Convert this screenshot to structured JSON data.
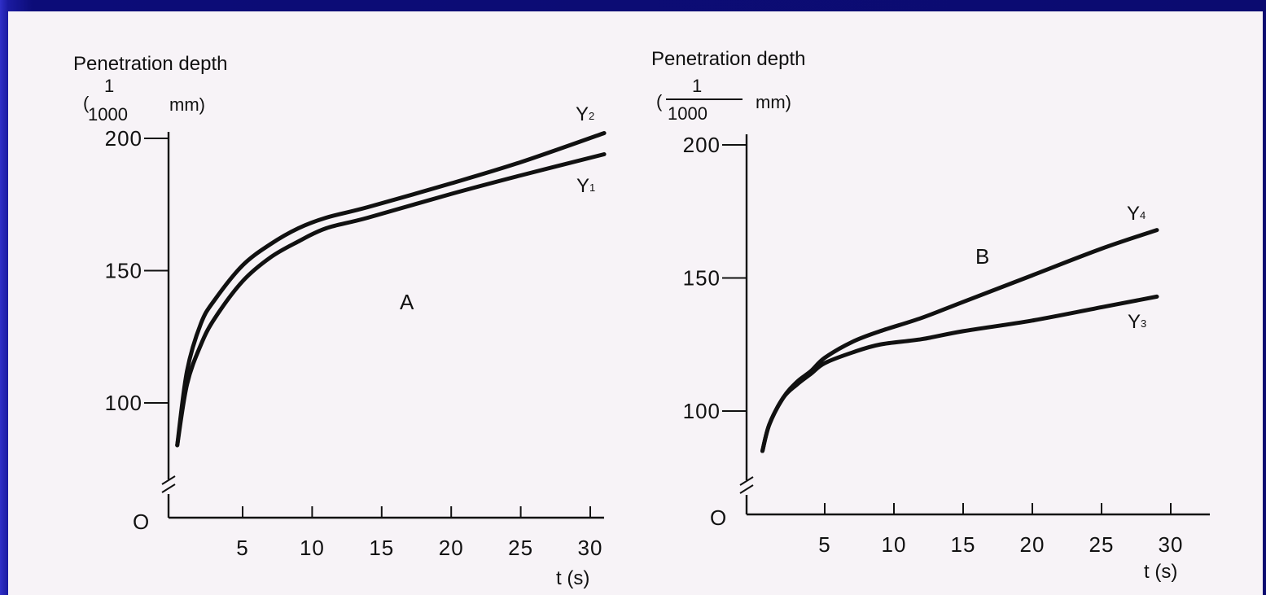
{
  "chart_data": [
    {
      "panel": "left",
      "type": "line",
      "ylabel": "Penetration depth",
      "yunit": {
        "open": "(",
        "num": "1",
        "den": "1000",
        "unit": "mm)"
      },
      "xlabel": "t (s)",
      "origin_label": "O",
      "annotation": "A",
      "xlim": [
        0,
        31
      ],
      "ylim": [
        80,
        200
      ],
      "yaxis_break": true,
      "xticks": [
        5,
        10,
        15,
        20,
        25,
        30
      ],
      "yticks": [
        100,
        150,
        200
      ],
      "series": [
        {
          "name": "Y1",
          "label_main": "Y",
          "label_sub": "1",
          "x": [
            0.3,
            1,
            2,
            3,
            5,
            7,
            9,
            11,
            14,
            20,
            25,
            31
          ],
          "y": [
            84,
            107,
            122,
            132,
            146,
            155,
            161,
            166,
            170,
            179,
            186,
            194
          ]
        },
        {
          "name": "Y2",
          "label_main": "Y",
          "label_sub": "2",
          "x": [
            0.3,
            1,
            2,
            3,
            5,
            7,
            9,
            11,
            14,
            20,
            25,
            31
          ],
          "y": [
            84,
            112,
            130,
            139,
            152,
            160,
            166,
            170,
            174,
            183,
            191,
            202
          ]
        }
      ],
      "grid": false
    },
    {
      "panel": "right",
      "type": "line",
      "ylabel": "Penetration depth",
      "yunit": {
        "open": "(",
        "num": "1",
        "den": "1000",
        "unit": "mm)"
      },
      "xlabel": "t (s)",
      "origin_label": "O",
      "annotation": "B",
      "xlim": [
        0,
        32
      ],
      "ylim": [
        80,
        200
      ],
      "yaxis_break": true,
      "xticks": [
        5,
        10,
        15,
        20,
        25,
        30
      ],
      "yticks": [
        100,
        150,
        200
      ],
      "series": [
        {
          "name": "Y3",
          "label_main": "Y",
          "label_sub": "3",
          "x": [
            0.5,
            1,
            2,
            3,
            4,
            5,
            7,
            9,
            12,
            15,
            20,
            25,
            29
          ],
          "y": [
            85,
            95,
            105,
            110,
            114,
            118,
            122,
            125,
            127,
            130,
            134,
            139,
            143
          ]
        },
        {
          "name": "Y4",
          "label_main": "Y",
          "label_sub": "4",
          "x": [
            0.5,
            1,
            2,
            3,
            4,
            5,
            7,
            9,
            12,
            15,
            20,
            25,
            29
          ],
          "y": [
            85,
            95,
            105,
            111,
            115,
            120,
            126,
            130,
            135,
            141,
            151,
            161,
            168
          ]
        }
      ],
      "grid": false
    }
  ]
}
